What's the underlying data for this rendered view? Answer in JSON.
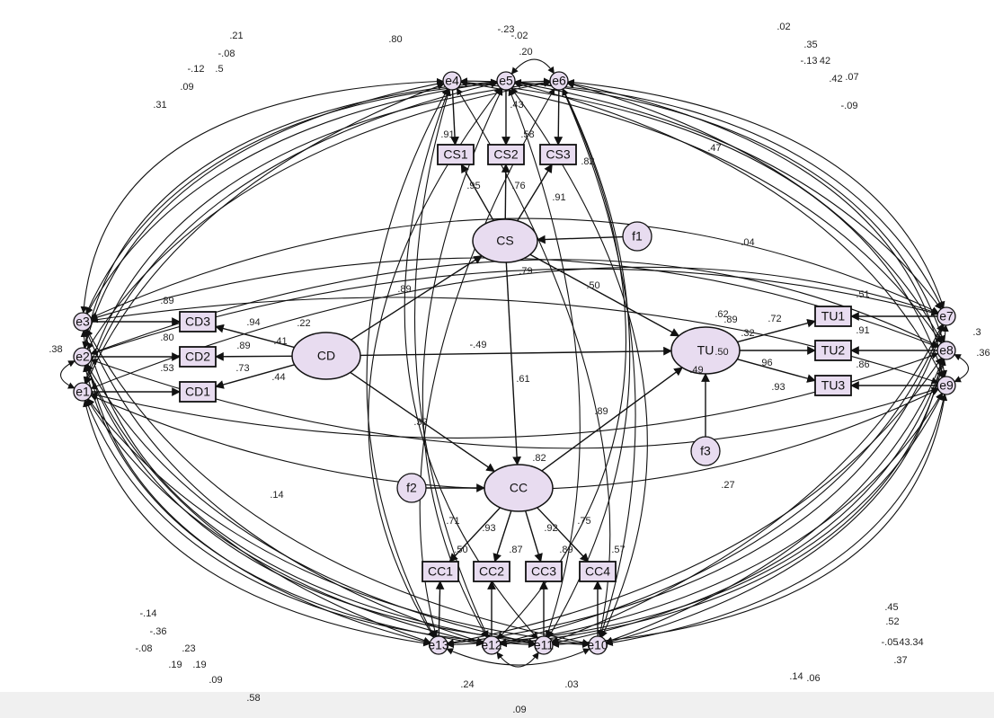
{
  "nodes": [
    {
      "label": "e4"
    },
    {
      "label": "e5"
    },
    {
      "label": "e6"
    },
    {
      "label": "CS1"
    },
    {
      "label": "CS2"
    },
    {
      "label": "CS3"
    },
    {
      "label": "CS"
    },
    {
      "label": "f1"
    },
    {
      "label": "CD"
    },
    {
      "label": "CD3"
    },
    {
      "label": "CD2"
    },
    {
      "label": "CD1"
    },
    {
      "label": "e3"
    },
    {
      "label": "e2"
    },
    {
      "label": "e1"
    },
    {
      "label": "TU"
    },
    {
      "label": "TU1"
    },
    {
      "label": "TU2"
    },
    {
      "label": "TU3"
    },
    {
      "label": "e7"
    },
    {
      "label": "e8"
    },
    {
      "label": "e9"
    },
    {
      "label": "f3"
    },
    {
      "label": "f2"
    },
    {
      "label": "CC"
    },
    {
      "label": "CC1"
    },
    {
      "label": "CC2"
    },
    {
      "label": "CC3"
    },
    {
      "label": "CC4"
    },
    {
      "label": "e13"
    },
    {
      "label": "e12"
    },
    {
      "label": "e11"
    },
    {
      "label": "e10"
    }
  ],
  "paths": [
    {
      "from": "e4",
      "to": "CS1"
    },
    {
      "from": "e5",
      "to": "CS2"
    },
    {
      "from": "e6",
      "to": "CS3"
    },
    {
      "from": "CS",
      "to": "CS1",
      "label": ".95"
    },
    {
      "from": "CS",
      "to": "CS2",
      "label": ".76"
    },
    {
      "from": "CS",
      "to": "CS3",
      "label": ".91"
    },
    {
      "from": "f1",
      "to": "CS"
    },
    {
      "from": "CD",
      "to": "CS",
      "label": ".89"
    },
    {
      "from": "CS",
      "to": "TU",
      "label": ".50"
    },
    {
      "from": "CD",
      "to": "TU",
      "label": "-.49"
    },
    {
      "from": "CS",
      "to": "CC",
      "label": ".61"
    },
    {
      "from": "CD",
      "to": "CC",
      "label": ".32"
    },
    {
      "from": "CC",
      "to": "TU",
      "label": ".89"
    },
    {
      "from": "f2",
      "to": "CC"
    },
    {
      "from": "f3",
      "to": "TU"
    },
    {
      "from": "CD",
      "to": "CD3",
      "label": ".94"
    },
    {
      "from": "CD",
      "to": "CD2",
      "label": ".89"
    },
    {
      "from": "CD",
      "to": "CD1",
      "label": ".73"
    },
    {
      "from": "e3",
      "to": "CD3"
    },
    {
      "from": "e2",
      "to": "CD2"
    },
    {
      "from": "e1",
      "to": "CD1"
    },
    {
      "from": "TU",
      "to": "TU1",
      "label": ".72"
    },
    {
      "from": "TU",
      "to": "TU2",
      "label": ".96"
    },
    {
      "from": "TU",
      "to": "TU3",
      "label": ".93"
    },
    {
      "from": "e7",
      "to": "TU1"
    },
    {
      "from": "e8",
      "to": "TU2"
    },
    {
      "from": "e9",
      "to": "TU3"
    },
    {
      "from": "CC",
      "to": "CC1",
      "label": ".71"
    },
    {
      "from": "CC",
      "to": "CC2",
      "label": ".93"
    },
    {
      "from": "CC",
      "to": "CC3",
      "label": ".92"
    },
    {
      "from": "CC",
      "to": "CC4",
      "label": ".75"
    },
    {
      "from": "e13",
      "to": "CC1"
    },
    {
      "from": "e12",
      "to": "CC2"
    },
    {
      "from": "e11",
      "to": "CC3"
    },
    {
      "from": "e10",
      "to": "CC4"
    }
  ],
  "estimates": [
    ".91",
    ".58",
    ".82",
    ".43",
    ".79",
    ".82",
    ".50",
    ".89",
    ".80",
    ".53",
    ".51",
    ".91",
    ".86",
    ".50",
    ".87",
    ".89",
    ".57",
    ".21",
    "-.08",
    "-.12",
    ".5",
    ".09",
    ".31",
    ".80",
    "-.23",
    "-.02",
    ".20",
    ".02",
    ".35",
    "-.13",
    "42",
    ".07",
    ".42",
    "-.09",
    ".47",
    ".04",
    ".22",
    ".41",
    ".44",
    ".14",
    ".27",
    ".49",
    ".62",
    ".89",
    ".32",
    ".36",
    ".3",
    ".38",
    "-.14",
    "-.36",
    "-.08",
    ".23",
    ".19",
    ".19",
    ".09",
    ".58",
    ".24",
    ".03",
    ".09",
    ".45",
    ".52",
    "-.05",
    ".43",
    ".34",
    ".37",
    ".14",
    ".06"
  ]
}
